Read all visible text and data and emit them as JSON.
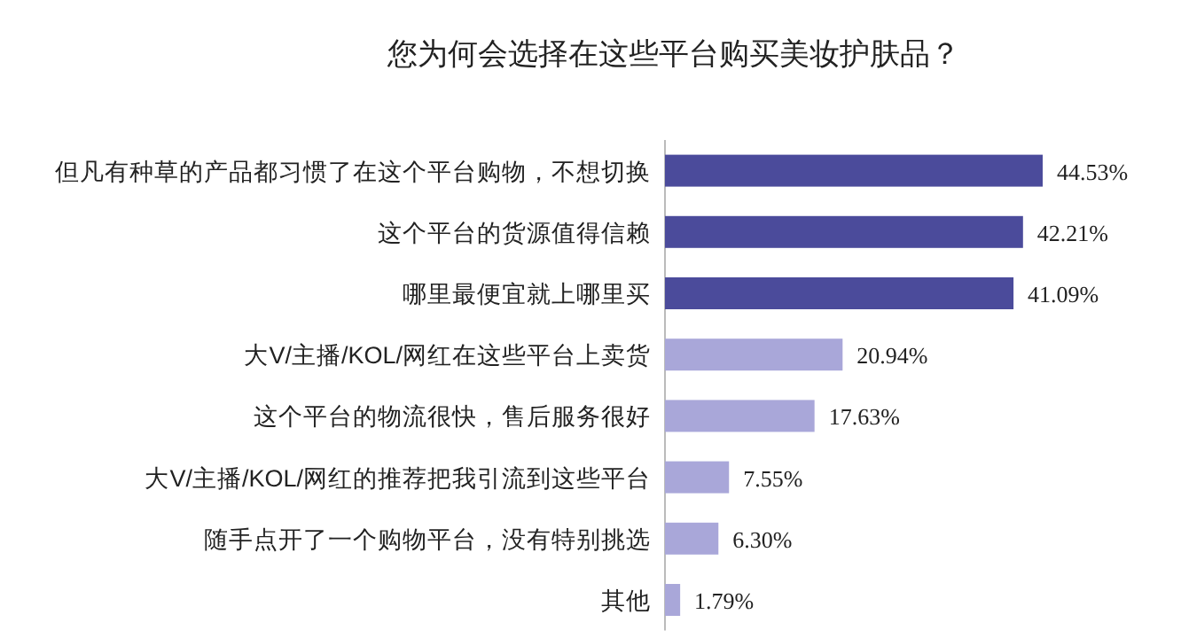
{
  "chart_data": {
    "type": "bar",
    "orientation": "horizontal",
    "title": "您为何会选择在这些平台购买美妆护肤品？",
    "categories": [
      "但凡有种草的产品都习惯了在这个平台购物，不想切换",
      "这个平台的货源值得信赖",
      "哪里最便宜就上哪里买",
      "大V/主播/KOL/网红在这些平台上卖货",
      "这个平台的物流很快，售后服务很好",
      "大V/主播/KOL/网红的推荐把我引流到这些平台",
      "随手点开了一个购物平台，没有特别挑选",
      "其他"
    ],
    "values": [
      44.53,
      42.21,
      41.09,
      20.94,
      17.63,
      7.55,
      6.3,
      1.79
    ],
    "colors": [
      "#4b4b9b",
      "#4b4b9b",
      "#4b4b9b",
      "#a9a7d9",
      "#a9a7d9",
      "#a9a7d9",
      "#a9a7d9",
      "#a9a7d9"
    ],
    "value_labels": [
      "44.53%",
      "42.21%",
      "41.09%",
      "20.94%",
      "17.63%",
      "7.55%",
      "6.30%",
      "1.79%"
    ]
  }
}
